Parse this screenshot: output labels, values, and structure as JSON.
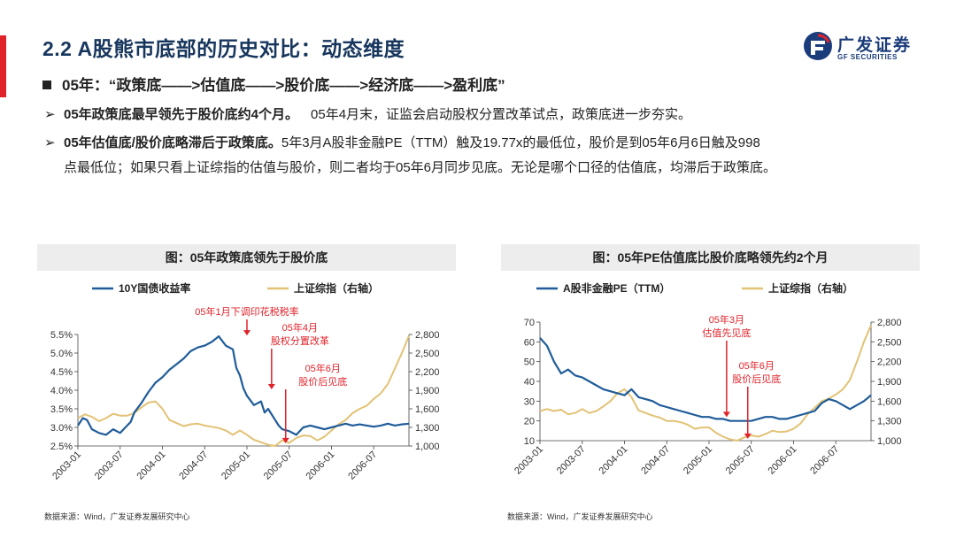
{
  "header": {
    "title": "2.2 A股熊市底部的历史对比：动态维度",
    "logo_cn": "广发证券",
    "logo_en": "GF SECURITIES"
  },
  "bullet": "05年：“政策底——>估值底——>股价底——>经济底——>盈利底”",
  "points": [
    {
      "arrow": "➢",
      "bold": "05年政策底最早领先于股价底约4个月。",
      "text": "05年4月末，证监会启动股权分置改革试点，政策底进一步夯实。"
    },
    {
      "arrow": "➢",
      "bold": "05年估值底/股价底略滞后于政策底。",
      "text": "5年3月A股非金融PE（TTM）触及19.77x的最低位，股价是到05年6月6日触及998",
      "text2": "点最低位；如果只看上证综指的估值与股价，则二者均于05年6月同步见底。无论是哪个口径的估值底，均滞后于政策底。"
    }
  ],
  "colors": {
    "blue": "#1f5c99",
    "gold": "#e2c275",
    "red": "#e0232b",
    "navy": "#17365d"
  },
  "chart_data": [
    {
      "type": "line",
      "panel_title": "图：05年政策底领先于股价底",
      "series": [
        {
          "name": "10Y国债收益率",
          "axis": "left",
          "color": "#1f5c99",
          "x": [
            0,
            0.7,
            1.3,
            2,
            3,
            4,
            5,
            6,
            7,
            7.5,
            8,
            9,
            10,
            11,
            12,
            13,
            14,
            15,
            16,
            17,
            18,
            19,
            20,
            21,
            22,
            22.5,
            23,
            23.5,
            24,
            25,
            26,
            26.5,
            27,
            28,
            28.5,
            29,
            30,
            31,
            32,
            33,
            34,
            35,
            36,
            37,
            38,
            39,
            40,
            41,
            42,
            43,
            44,
            45,
            46,
            47
          ],
          "values": [
            3.05,
            3.25,
            3.2,
            2.95,
            2.85,
            2.8,
            2.95,
            2.85,
            3.05,
            3.15,
            3.4,
            3.65,
            3.95,
            4.2,
            4.35,
            4.55,
            4.7,
            4.85,
            5.05,
            5.15,
            5.2,
            5.3,
            5.45,
            5.2,
            5.1,
            4.6,
            4.4,
            4.05,
            3.85,
            3.6,
            3.7,
            3.4,
            3.5,
            3.2,
            3.05,
            2.95,
            2.9,
            2.8,
            3.0,
            3.05,
            3.0,
            2.95,
            3.0,
            3.05,
            3.1,
            3.05,
            3.08,
            3.05,
            3.02,
            3.05,
            3.1,
            3.05,
            3.08,
            3.1
          ]
        },
        {
          "name": "上证综指（右轴）",
          "axis": "right",
          "color": "#e2c275",
          "x": [
            0,
            1,
            2,
            3,
            4,
            5,
            6,
            7,
            8,
            9,
            10,
            11,
            12,
            13,
            14,
            15,
            16,
            17,
            18,
            19,
            20,
            21,
            22,
            23,
            24,
            25,
            26,
            27,
            28,
            29,
            30,
            31,
            32,
            33,
            34,
            35,
            36,
            37,
            38,
            39,
            40,
            41,
            42,
            43,
            44,
            45,
            46,
            47
          ],
          "values": [
            1450,
            1510,
            1470,
            1400,
            1450,
            1520,
            1490,
            1490,
            1530,
            1620,
            1700,
            1720,
            1600,
            1420,
            1370,
            1320,
            1350,
            1360,
            1330,
            1310,
            1290,
            1250,
            1180,
            1250,
            1180,
            1100,
            1060,
            1020,
            1000,
            1090,
            1050,
            1130,
            1170,
            1160,
            1090,
            1150,
            1250,
            1350,
            1420,
            1530,
            1600,
            1650,
            1760,
            1850,
            2000,
            2250,
            2500,
            2780
          ]
        }
      ],
      "x_ticks": [
        "2003-01",
        "2003-07",
        "2004-01",
        "2004-07",
        "2005-01",
        "2005-07",
        "2006-01",
        "2006-07"
      ],
      "x_tick_pos": [
        0,
        6,
        12,
        18,
        24,
        30,
        36,
        42
      ],
      "x_range": [
        0,
        47
      ],
      "y_left": {
        "min": 2.5,
        "max": 5.5,
        "ticks": [
          2.5,
          3.0,
          3.5,
          4.0,
          4.5,
          5.0,
          5.5
        ],
        "labels": [
          "2.5%",
          "3.0%",
          "3.5%",
          "4.0%",
          "4.5%",
          "5.0%",
          "5.5%"
        ]
      },
      "y_right": {
        "min": 1000,
        "max": 2800,
        "ticks": [
          1000,
          1300,
          1600,
          1900,
          2200,
          2500,
          2800
        ],
        "labels": [
          "1,000",
          "1,300",
          "1,600",
          "1,900",
          "2,200",
          "2,500",
          "2,800"
        ]
      },
      "annotations": [
        {
          "text": "05年1月下调印花税税率",
          "x": 24,
          "y": 5.45,
          "axis": "left"
        },
        {
          "text": "05年4月",
          "text2": "股权分置改革",
          "x": 27.5,
          "y": 4.0,
          "axis": "left"
        },
        {
          "text": "05年6月",
          "text2": "股价后见底",
          "x": 29.5,
          "y": 2.55,
          "axis": "left"
        }
      ],
      "source": "数据来源：Wind，广发证券发展研究中心"
    },
    {
      "type": "line",
      "panel_title": "图：05年PE估值底比股价底略领先约2个月",
      "series": [
        {
          "name": "A股非金融PE（TTM）",
          "axis": "left",
          "color": "#1f5c99",
          "x": [
            0,
            1,
            2,
            3,
            4,
            5,
            6,
            7,
            8,
            9,
            10,
            11,
            12,
            13,
            14,
            15,
            16,
            17,
            18,
            19,
            20,
            21,
            22,
            23,
            24,
            25,
            26,
            27,
            28,
            29,
            30,
            31,
            32,
            33,
            34,
            35,
            36,
            37,
            38,
            39,
            40,
            41,
            42,
            43,
            44,
            45,
            46,
            47
          ],
          "values": [
            62,
            58,
            50,
            44,
            46,
            43,
            42,
            40,
            38,
            36,
            35,
            34,
            33,
            36,
            32,
            31,
            30,
            28,
            27,
            26,
            25,
            24,
            23,
            22,
            22,
            21,
            21,
            20,
            20,
            20,
            20,
            21,
            22,
            22,
            21,
            21,
            22,
            23,
            24,
            25,
            29,
            31,
            30,
            28,
            26,
            28,
            30,
            33
          ]
        },
        {
          "name": "上证综指（右轴）",
          "axis": "right",
          "color": "#e2c275",
          "x": [
            0,
            1,
            2,
            3,
            4,
            5,
            6,
            7,
            8,
            9,
            10,
            11,
            12,
            13,
            14,
            15,
            16,
            17,
            18,
            19,
            20,
            21,
            22,
            23,
            24,
            25,
            26,
            27,
            28,
            29,
            30,
            31,
            32,
            33,
            34,
            35,
            36,
            37,
            38,
            39,
            40,
            41,
            42,
            43,
            44,
            45,
            46,
            47
          ],
          "values": [
            1450,
            1480,
            1450,
            1470,
            1400,
            1420,
            1480,
            1420,
            1450,
            1520,
            1600,
            1720,
            1780,
            1660,
            1460,
            1420,
            1380,
            1350,
            1300,
            1300,
            1280,
            1240,
            1180,
            1200,
            1200,
            1120,
            1060,
            1020,
            1000,
            1050,
            1080,
            1060,
            1100,
            1150,
            1130,
            1140,
            1180,
            1260,
            1400,
            1500,
            1600,
            1640,
            1700,
            1780,
            1920,
            2200,
            2500,
            2750
          ]
        }
      ],
      "x_ticks": [
        "2003-01",
        "2003-07",
        "2004-01",
        "2004-07",
        "2005-01",
        "2005-07",
        "2006-01",
        "2006-07"
      ],
      "x_tick_pos": [
        0,
        6,
        12,
        18,
        24,
        30,
        36,
        42
      ],
      "x_range": [
        0,
        47
      ],
      "y_left": {
        "min": 10,
        "max": 70,
        "ticks": [
          10,
          20,
          30,
          40,
          50,
          60,
          70
        ],
        "labels": [
          "10",
          "20",
          "30",
          "40",
          "50",
          "60",
          "70"
        ]
      },
      "y_right": {
        "min": 1000,
        "max": 2800,
        "ticks": [
          1000,
          1300,
          1600,
          1900,
          2200,
          2500,
          2800
        ],
        "labels": [
          "1,000",
          "1,300",
          "1,600",
          "1,900",
          "2,200",
          "2,500",
          "2,800"
        ]
      },
      "annotations": [
        {
          "text": "05年3月",
          "text2": "估值先见底",
          "x": 26.5,
          "y": 21.5,
          "axis": "left"
        },
        {
          "text": "05年6月",
          "text2": "股价后见底",
          "x": 29.5,
          "y": 10.5,
          "axis": "left"
        }
      ],
      "source": "数据来源：Wind，广发证券发展研究中心"
    }
  ]
}
